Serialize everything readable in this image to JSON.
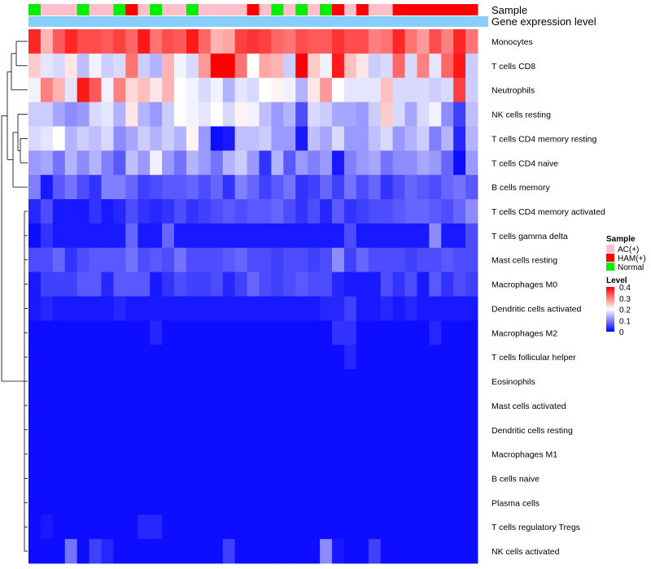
{
  "chart_data": {
    "type": "heatmap",
    "title": "",
    "annotation_tracks": [
      "Sample",
      "Gene expression level"
    ],
    "legend": {
      "sample_title": "Sample",
      "sample_entries": [
        {
          "label": "AC(+)",
          "color": "#ffc0cb"
        },
        {
          "label": "HAM(+)",
          "color": "#ff0000"
        },
        {
          "label": "Normal",
          "color": "#00ee00"
        }
      ],
      "level_title": "Level",
      "level_ticks": [
        "0.4",
        "0.3",
        "0.2",
        "0.1",
        "0"
      ]
    },
    "colors": {
      "low": "#0000ff",
      "mid": "#ffffff",
      "high": "#ff0000",
      "ac": "#ffc0cb",
      "ham": "#ff0000",
      "normal": "#00ee00",
      "expression_track": "#87cefa"
    },
    "value_range": [
      0,
      0.4
    ],
    "midpoint": 0.2,
    "sample_groups": [
      "Normal",
      "AC(+)",
      "AC(+)",
      "AC(+)",
      "Normal",
      "AC(+)",
      "AC(+)",
      "Normal",
      "HAM(+)",
      "AC(+)",
      "Normal",
      "AC(+)",
      "AC(+)",
      "Normal",
      "AC(+)",
      "AC(+)",
      "AC(+)",
      "AC(+)",
      "HAM(+)",
      "AC(+)",
      "Normal",
      "AC(+)",
      "Normal",
      "AC(+)",
      "Normal",
      "HAM(+)",
      "AC(+)",
      "HAM(+)",
      "AC(+)",
      "AC(+)",
      "HAM(+)",
      "HAM(+)",
      "HAM(+)",
      "HAM(+)",
      "HAM(+)",
      "HAM(+)",
      "HAM(+)"
    ],
    "rows": [
      {
        "name": "Monocytes",
        "values": [
          0.37,
          0.26,
          0.33,
          0.37,
          0.34,
          0.34,
          0.33,
          0.35,
          0.32,
          0.38,
          0.31,
          0.34,
          0.33,
          0.38,
          0.32,
          0.26,
          0.27,
          0.35,
          0.36,
          0.35,
          0.32,
          0.31,
          0.34,
          0.33,
          0.33,
          0.36,
          0.34,
          0.34,
          0.3,
          0.31,
          0.37,
          0.31,
          0.28,
          0.34,
          0.3,
          0.37,
          0.31
        ]
      },
      {
        "name": "T cells CD8",
        "values": [
          0.24,
          0.18,
          0.17,
          0.22,
          0.15,
          0.19,
          0.16,
          0.17,
          0.31,
          0.16,
          0.14,
          0.26,
          0.19,
          0.17,
          0.28,
          0.4,
          0.4,
          0.31,
          0.2,
          0.27,
          0.26,
          0.16,
          0.4,
          0.24,
          0.19,
          0.38,
          0.25,
          0.22,
          0.16,
          0.17,
          0.32,
          0.17,
          0.3,
          0.18,
          0.32,
          0.38,
          0.16
        ]
      },
      {
        "name": "Neutrophils",
        "values": [
          0.19,
          0.3,
          0.26,
          0.18,
          0.38,
          0.33,
          0.19,
          0.3,
          0.23,
          0.25,
          0.22,
          0.26,
          0.2,
          0.19,
          0.17,
          0.19,
          0.14,
          0.18,
          0.17,
          0.2,
          0.21,
          0.19,
          0.14,
          0.22,
          0.28,
          0.2,
          0.18,
          0.18,
          0.18,
          0.25,
          0.17,
          0.17,
          0.17,
          0.16,
          0.17,
          0.35,
          0.16
        ]
      },
      {
        "name": "NK cells resting",
        "values": [
          0.16,
          0.16,
          0.13,
          0.11,
          0.12,
          0.17,
          0.18,
          0.14,
          0.22,
          0.14,
          0.12,
          0.16,
          0.2,
          0.19,
          0.18,
          0.2,
          0.17,
          0.21,
          0.19,
          0.15,
          0.12,
          0.14,
          0.06,
          0.17,
          0.16,
          0.13,
          0.13,
          0.12,
          0.16,
          0.24,
          0.17,
          0.13,
          0.17,
          0.19,
          0.11,
          0.05,
          0.15
        ]
      },
      {
        "name": "T cells CD4 memory resting",
        "values": [
          0.17,
          0.18,
          0.2,
          0.14,
          0.16,
          0.15,
          0.17,
          0.11,
          0.13,
          0.16,
          0.14,
          0.16,
          0.14,
          0.21,
          0.12,
          0.01,
          0.02,
          0.15,
          0.15,
          0.16,
          0.12,
          0.12,
          0.02,
          0.15,
          0.13,
          0.17,
          0.12,
          0.12,
          0.15,
          0.17,
          0.12,
          0.14,
          0.16,
          0.1,
          0.14,
          0.03,
          0.14
        ]
      },
      {
        "name": "T cells CD4 naive",
        "values": [
          0.12,
          0.13,
          0.09,
          0.14,
          0.11,
          0.14,
          0.1,
          0.07,
          0.15,
          0.12,
          0.19,
          0.12,
          0.09,
          0.14,
          0.12,
          0.09,
          0.14,
          0.16,
          0.12,
          0.04,
          0.14,
          0.07,
          0.12,
          0.1,
          0.12,
          0.02,
          0.1,
          0.12,
          0.13,
          0.09,
          0.11,
          0.11,
          0.13,
          0.12,
          0.08,
          0.01,
          0.12
        ]
      },
      {
        "name": "B cells memory",
        "values": [
          0.1,
          0.02,
          0.07,
          0.09,
          0.06,
          0.04,
          0.1,
          0.1,
          0.08,
          0.05,
          0.06,
          0.07,
          0.07,
          0.08,
          0.06,
          0.08,
          0.04,
          0.1,
          0.08,
          0.05,
          0.07,
          0.09,
          0.04,
          0.05,
          0.08,
          0.05,
          0.09,
          0.06,
          0.08,
          0.04,
          0.06,
          0.08,
          0.07,
          0.06,
          0.08,
          0.09,
          0.07
        ]
      },
      {
        "name": "T cells CD4 memory activated",
        "values": [
          0.03,
          0.06,
          0.02,
          0.02,
          0.02,
          0.04,
          0.02,
          0.03,
          0.06,
          0.04,
          0.03,
          0.04,
          0.06,
          0.04,
          0.05,
          0.06,
          0.07,
          0.06,
          0.07,
          0.07,
          0.08,
          0.06,
          0.04,
          0.06,
          0.03,
          0.07,
          0.04,
          0.05,
          0.06,
          0.06,
          0.07,
          0.08,
          0.08,
          0.07,
          0.06,
          0.08,
          0.11
        ]
      },
      {
        "name": "T cells gamma delta",
        "values": [
          0.01,
          0.04,
          0.02,
          0.02,
          0.02,
          0.02,
          0.02,
          0.02,
          0.08,
          0.02,
          0.02,
          0.08,
          0.02,
          0.02,
          0.02,
          0.02,
          0.02,
          0.02,
          0.02,
          0.02,
          0.02,
          0.02,
          0.02,
          0.02,
          0.02,
          0.02,
          0.06,
          0.02,
          0.02,
          0.02,
          0.02,
          0.02,
          0.02,
          0.11,
          0.02,
          0.02,
          0.06
        ]
      },
      {
        "name": "Mast cells resting",
        "values": [
          0.06,
          0.06,
          0.08,
          0.04,
          0.06,
          0.07,
          0.07,
          0.07,
          0.09,
          0.06,
          0.07,
          0.06,
          0.09,
          0.06,
          0.06,
          0.06,
          0.07,
          0.08,
          0.06,
          0.06,
          0.05,
          0.06,
          0.06,
          0.05,
          0.06,
          0.11,
          0.05,
          0.08,
          0.06,
          0.06,
          0.06,
          0.05,
          0.06,
          0.06,
          0.07,
          0.06,
          0.06
        ]
      },
      {
        "name": "Macrophages M0",
        "values": [
          0.02,
          0.05,
          0.05,
          0.05,
          0.07,
          0.07,
          0.03,
          0.07,
          0.07,
          0.07,
          0.02,
          0.04,
          0.06,
          0.05,
          0.05,
          0.06,
          0.03,
          0.05,
          0.08,
          0.06,
          0.05,
          0.06,
          0.07,
          0.06,
          0.06,
          0.03,
          0.02,
          0.02,
          0.02,
          0.06,
          0.04,
          0.06,
          0.02,
          0.07,
          0.04,
          0.06,
          0.05
        ]
      },
      {
        "name": "Dendritic cells activated",
        "values": [
          0.02,
          0.03,
          0.02,
          0.02,
          0.02,
          0.02,
          0.02,
          0.03,
          0.02,
          0.02,
          0.02,
          0.02,
          0.02,
          0.02,
          0.02,
          0.02,
          0.02,
          0.02,
          0.02,
          0.02,
          0.02,
          0.02,
          0.02,
          0.02,
          0.03,
          0.03,
          0.05,
          0.02,
          0.02,
          0.03,
          0.02,
          0.03,
          0.02,
          0.02,
          0.02,
          0.02,
          0.02
        ]
      },
      {
        "name": "Macrophages M2",
        "values": [
          0.01,
          0.01,
          0.01,
          0.01,
          0.01,
          0.01,
          0.01,
          0.01,
          0.01,
          0.01,
          0.03,
          0.01,
          0.01,
          0.01,
          0.01,
          0.01,
          0.01,
          0.01,
          0.01,
          0.01,
          0.01,
          0.01,
          0.01,
          0.01,
          0.01,
          0.04,
          0.04,
          0.01,
          0.01,
          0.01,
          0.01,
          0.01,
          0.01,
          0.03,
          0.01,
          0.01,
          0.01
        ]
      },
      {
        "name": "T cells follicular helper",
        "values": [
          0.01,
          0.01,
          0.01,
          0.01,
          0.01,
          0.01,
          0.01,
          0.01,
          0.01,
          0.01,
          0.01,
          0.01,
          0.01,
          0.01,
          0.01,
          0.01,
          0.01,
          0.01,
          0.01,
          0.01,
          0.01,
          0.01,
          0.01,
          0.01,
          0.01,
          0.01,
          0.03,
          0.01,
          0.01,
          0.01,
          0.01,
          0.01,
          0.01,
          0.01,
          0.01,
          0.01,
          0.01
        ]
      },
      {
        "name": "Eosinophils",
        "values": [
          0.01,
          0.01,
          0.01,
          0.01,
          0.01,
          0.01,
          0.01,
          0.01,
          0.01,
          0.01,
          0.01,
          0.01,
          0.01,
          0.01,
          0.01,
          0.01,
          0.01,
          0.01,
          0.01,
          0.01,
          0.01,
          0.01,
          0.01,
          0.01,
          0.01,
          0.01,
          0.01,
          0.01,
          0.01,
          0.01,
          0.01,
          0.01,
          0.01,
          0.01,
          0.01,
          0.01,
          0.01
        ]
      },
      {
        "name": "Mast cells activated",
        "values": [
          0.01,
          0.01,
          0.01,
          0.01,
          0.01,
          0.01,
          0.01,
          0.01,
          0.01,
          0.01,
          0.01,
          0.01,
          0.01,
          0.01,
          0.01,
          0.01,
          0.01,
          0.01,
          0.01,
          0.01,
          0.01,
          0.01,
          0.01,
          0.01,
          0.01,
          0.01,
          0.01,
          0.01,
          0.01,
          0.01,
          0.01,
          0.01,
          0.01,
          0.01,
          0.01,
          0.01,
          0.01
        ]
      },
      {
        "name": "Dendritic cells resting",
        "values": [
          0.01,
          0.01,
          0.01,
          0.01,
          0.01,
          0.01,
          0.01,
          0.01,
          0.01,
          0.01,
          0.01,
          0.01,
          0.01,
          0.01,
          0.01,
          0.01,
          0.01,
          0.01,
          0.01,
          0.01,
          0.01,
          0.01,
          0.01,
          0.01,
          0.01,
          0.01,
          0.01,
          0.01,
          0.01,
          0.01,
          0.01,
          0.01,
          0.01,
          0.01,
          0.01,
          0.01,
          0.01
        ]
      },
      {
        "name": "Macrophages M1",
        "values": [
          0.01,
          0.01,
          0.01,
          0.01,
          0.01,
          0.01,
          0.01,
          0.01,
          0.01,
          0.01,
          0.01,
          0.01,
          0.01,
          0.01,
          0.01,
          0.01,
          0.01,
          0.01,
          0.01,
          0.01,
          0.01,
          0.01,
          0.01,
          0.01,
          0.01,
          0.01,
          0.01,
          0.01,
          0.01,
          0.01,
          0.01,
          0.01,
          0.01,
          0.01,
          0.01,
          0.01,
          0.01
        ]
      },
      {
        "name": "B cells naive",
        "values": [
          0.01,
          0.01,
          0.01,
          0.01,
          0.01,
          0.01,
          0.01,
          0.01,
          0.01,
          0.01,
          0.01,
          0.01,
          0.01,
          0.01,
          0.01,
          0.01,
          0.01,
          0.01,
          0.01,
          0.01,
          0.01,
          0.01,
          0.01,
          0.01,
          0.01,
          0.01,
          0.01,
          0.01,
          0.01,
          0.01,
          0.01,
          0.01,
          0.01,
          0.01,
          0.01,
          0.01,
          0.01
        ]
      },
      {
        "name": "Plasma cells",
        "values": [
          0.01,
          0.01,
          0.01,
          0.01,
          0.01,
          0.01,
          0.01,
          0.01,
          0.01,
          0.01,
          0.01,
          0.01,
          0.01,
          0.01,
          0.01,
          0.01,
          0.01,
          0.01,
          0.01,
          0.01,
          0.01,
          0.01,
          0.01,
          0.01,
          0.01,
          0.01,
          0.01,
          0.01,
          0.01,
          0.01,
          0.01,
          0.01,
          0.01,
          0.01,
          0.01,
          0.01,
          0.01
        ]
      },
      {
        "name": "T cells regulatory  Tregs",
        "values": [
          0.01,
          0.02,
          0.01,
          0.01,
          0.01,
          0.01,
          0.01,
          0.01,
          0.01,
          0.03,
          0.03,
          0.01,
          0.01,
          0.01,
          0.01,
          0.01,
          0.01,
          0.01,
          0.01,
          0.01,
          0.01,
          0.01,
          0.01,
          0.01,
          0.01,
          0.01,
          0.01,
          0.01,
          0.01,
          0.01,
          0.01,
          0.01,
          0.01,
          0.01,
          0.01,
          0.01,
          0.01
        ]
      },
      {
        "name": "NK cells activated",
        "values": [
          0.01,
          0.01,
          0.01,
          0.09,
          0.01,
          0.05,
          0.03,
          0.01,
          0.01,
          0.01,
          0.01,
          0.01,
          0.01,
          0.01,
          0.01,
          0.01,
          0.05,
          0.01,
          0.01,
          0.01,
          0.01,
          0.01,
          0.01,
          0.01,
          0.11,
          0.02,
          0.01,
          0.01,
          0.05,
          0.01,
          0.01,
          0.01,
          0.01,
          0.01,
          0.01,
          0.01,
          0.01
        ]
      }
    ]
  }
}
